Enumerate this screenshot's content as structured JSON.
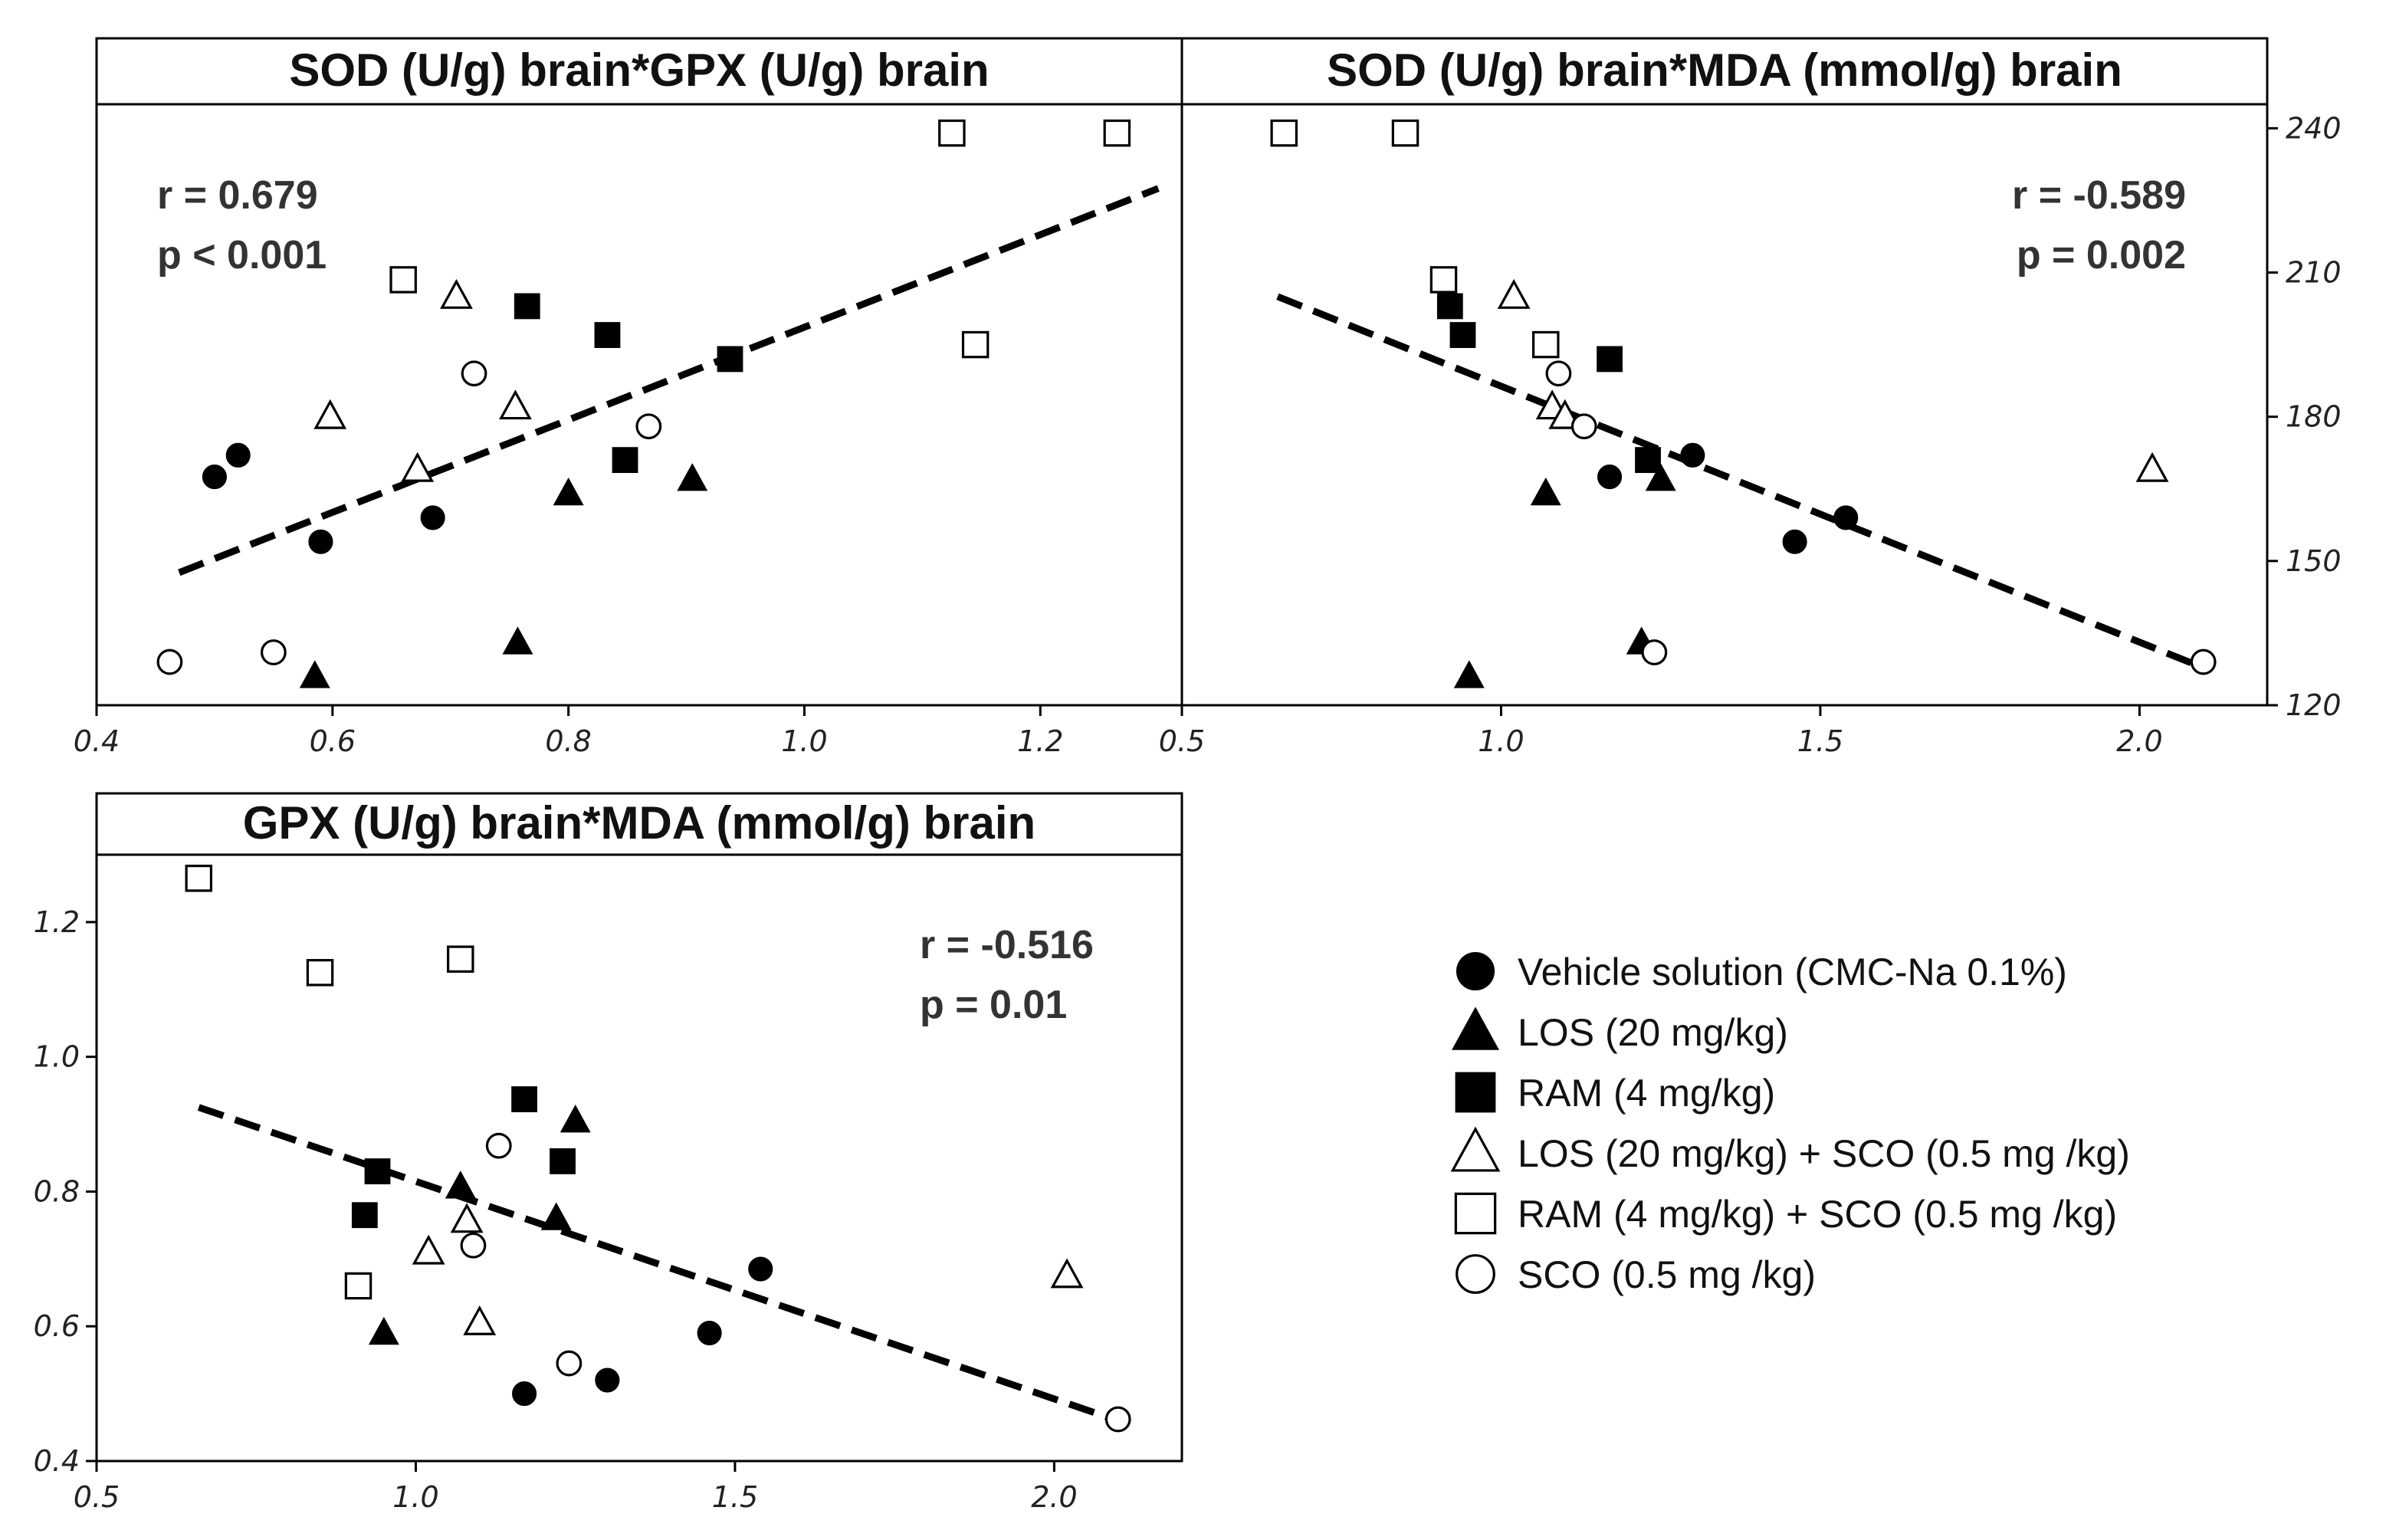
{
  "chart_data": [
    {
      "type": "scatter",
      "title": "SOD (U/g) brain*GPX (U/g) brain",
      "xlabel": "",
      "ylabel": "",
      "xlim": [
        0.4,
        1.32
      ],
      "ylim": [
        120,
        245
      ],
      "xticks": [
        0.4,
        0.6,
        0.8,
        1.0,
        1.2
      ],
      "xtick_labels": [
        "0.4",
        "0.6",
        "0.8",
        "1.0",
        "1.2"
      ],
      "yticks": [
        120,
        150,
        180,
        210,
        240
      ],
      "ytick_labels": [
        "120",
        "150",
        "180",
        "210",
        "240"
      ],
      "grid": false,
      "stats": {
        "r": "r = 0.679",
        "p": "p < 0.001"
      },
      "regression": {
        "x": [
          0.47,
          1.3
        ],
        "y": [
          147.6,
          227.5
        ]
      },
      "series": [
        {
          "name": "Vehicle solution  (CMC-Na 0.1%)",
          "marker": "filled-circle",
          "x": [
            0.5,
            0.52,
            0.59,
            0.685
          ],
          "y": [
            167.5,
            172,
            154,
            159
          ]
        },
        {
          "name": "LOS (20 mg/kg)",
          "marker": "filled-triangle",
          "x": [
            0.585,
            0.757,
            0.8,
            0.905
          ],
          "y": [
            126,
            133,
            164,
            167
          ]
        },
        {
          "name": "RAM (4 mg/kg)",
          "marker": "filled-square",
          "x": [
            0.765,
            0.833,
            0.848,
            0.937
          ],
          "y": [
            203,
            197,
            171,
            192
          ]
        },
        {
          "name": "LOS (20 mg/kg) + SCO (0.5 mg /kg)",
          "marker": "open-triangle",
          "x": [
            0.598,
            0.672,
            0.705,
            0.755
          ],
          "y": [
            180,
            169,
            205,
            182
          ]
        },
        {
          "name": "RAM (4 mg/kg) + SCO (0.5 mg /kg)",
          "marker": "open-square",
          "x": [
            0.66,
            1.125,
            1.145,
            1.265
          ],
          "y": [
            208.5,
            239,
            195,
            239
          ]
        },
        {
          "name": "SCO (0.5 mg /kg)",
          "marker": "open-circle",
          "x": [
            0.462,
            0.55,
            0.72,
            0.868
          ],
          "y": [
            129,
            131,
            189,
            178
          ]
        }
      ]
    },
    {
      "type": "scatter",
      "title": "SOD (U/g) brain*MDA (mmol/g) brain",
      "xlabel": "",
      "ylabel": "",
      "xlim": [
        0.5,
        2.2
      ],
      "ylim": [
        120,
        245
      ],
      "xticks": [
        0.5,
        1.0,
        1.5,
        2.0
      ],
      "xtick_labels": [
        "0.5",
        "1.0",
        "1.5",
        "2.0"
      ],
      "yticks": [
        120,
        150,
        180,
        210,
        240
      ],
      "ytick_labels": [
        "120",
        "150",
        "180",
        "210",
        "240"
      ],
      "grid": false,
      "stats": {
        "r": "r = -0.589",
        "p": "p = 0.002"
      },
      "regression": {
        "x": [
          0.65,
          2.1
        ],
        "y": [
          205,
          127.8
        ]
      },
      "series": [
        {
          "name": "Vehicle solution  (CMC-Na 0.1%)",
          "marker": "filled-circle",
          "x": [
            1.17,
            1.3,
            1.46,
            1.54
          ],
          "y": [
            167.5,
            172,
            154,
            159
          ]
        },
        {
          "name": "LOS (20 mg/kg)",
          "marker": "filled-triangle",
          "x": [
            0.95,
            1.07,
            1.22,
            1.25
          ],
          "y": [
            126,
            164,
            133,
            167
          ]
        },
        {
          "name": "RAM (4 mg/kg)",
          "marker": "filled-square",
          "x": [
            0.92,
            0.94,
            1.17,
            1.23
          ],
          "y": [
            203,
            197,
            192,
            171
          ]
        },
        {
          "name": "LOS (20 mg/kg) + SCO (0.5 mg /kg)",
          "marker": "open-triangle",
          "x": [
            1.02,
            1.08,
            1.1,
            2.02
          ],
          "y": [
            205,
            182,
            180,
            169
          ]
        },
        {
          "name": "RAM (4 mg/kg) + SCO (0.5 mg /kg)",
          "marker": "open-square",
          "x": [
            0.66,
            0.85,
            0.91,
            1.07
          ],
          "y": [
            239,
            239,
            208.5,
            195
          ]
        },
        {
          "name": "SCO (0.5 mg /kg)",
          "marker": "open-circle",
          "x": [
            1.09,
            1.13,
            1.24,
            2.1
          ],
          "y": [
            189,
            178,
            131,
            129
          ]
        }
      ]
    },
    {
      "type": "scatter",
      "title": "GPX (U/g) brain*MDA (mmol/g) brain",
      "xlabel": "",
      "ylabel": "",
      "xlim": [
        0.5,
        2.2
      ],
      "ylim": [
        0.4,
        1.3
      ],
      "xticks": [
        0.5,
        1.0,
        1.5,
        2.0
      ],
      "xtick_labels": [
        "0.5",
        "1.0",
        "1.5",
        "2.0"
      ],
      "yticks": [
        0.4,
        0.6,
        0.8,
        1.0,
        1.2
      ],
      "ytick_labels": [
        "0.4",
        "0.6",
        "0.8",
        "1.0",
        "1.2"
      ],
      "grid": false,
      "stats": {
        "r": "r = -0.516",
        "p": "p = 0.01"
      },
      "regression": {
        "x": [
          0.66,
          2.1
        ],
        "y": [
          0.925,
          0.46
        ]
      },
      "series": [
        {
          "name": "Vehicle solution  (CMC-Na 0.1%)",
          "marker": "filled-circle",
          "x": [
            1.17,
            1.3,
            1.46,
            1.54
          ],
          "y": [
            0.5,
            0.52,
            0.59,
            0.685
          ]
        },
        {
          "name": "LOS (20 mg/kg)",
          "marker": "filled-triangle",
          "x": [
            0.95,
            1.07,
            1.22,
            1.25
          ],
          "y": [
            0.59,
            0.807,
            0.76,
            0.905
          ]
        },
        {
          "name": "RAM (4 mg/kg)",
          "marker": "filled-square",
          "x": [
            0.92,
            0.94,
            1.17,
            1.23
          ],
          "y": [
            0.765,
            0.83,
            0.937,
            0.845
          ]
        },
        {
          "name": "LOS (20 mg/kg) + SCO (0.5 mg /kg)",
          "marker": "open-triangle",
          "x": [
            1.02,
            1.08,
            1.1,
            2.02
          ],
          "y": [
            0.71,
            0.757,
            0.605,
            0.675
          ]
        },
        {
          "name": "RAM (4 mg/kg) + SCO (0.5 mg /kg)",
          "marker": "open-square",
          "x": [
            0.66,
            0.85,
            0.91,
            1.07
          ],
          "y": [
            1.265,
            1.125,
            0.66,
            1.145
          ]
        },
        {
          "name": "SCO (0.5 mg /kg)",
          "marker": "open-circle",
          "x": [
            1.09,
            1.13,
            1.24,
            2.1
          ],
          "y": [
            0.72,
            0.868,
            0.545,
            0.462
          ]
        }
      ]
    }
  ],
  "legend": {
    "items": [
      {
        "marker": "filled-circle",
        "label": "Vehicle solution  (CMC-Na 0.1%)"
      },
      {
        "marker": "filled-triangle",
        "label": "LOS (20 mg/kg)"
      },
      {
        "marker": "filled-square",
        "label": "RAM (4 mg/kg)"
      },
      {
        "marker": "open-triangle",
        "label": "LOS (20 mg/kg) + SCO (0.5 mg /kg)"
      },
      {
        "marker": "open-square",
        "label": "RAM (4 mg/kg) + SCO (0.5 mg /kg)"
      },
      {
        "marker": "open-circle",
        "label": "SCO (0.5 mg /kg)"
      }
    ]
  }
}
